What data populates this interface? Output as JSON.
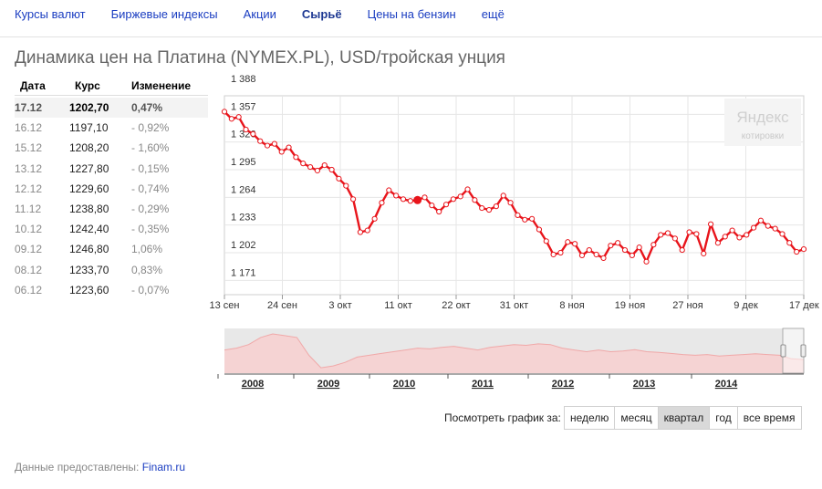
{
  "nav": {
    "items": [
      {
        "label": "Курсы валют",
        "active": false
      },
      {
        "label": "Биржевые индексы",
        "active": false
      },
      {
        "label": "Акции",
        "active": false
      },
      {
        "label": "Сырьё",
        "active": true
      },
      {
        "label": "Цены на бензин",
        "active": false
      },
      {
        "label": "ещё",
        "active": false
      }
    ]
  },
  "page_title": "Динамика цен на Платина (NYMEX.PL), USD/тройская унция",
  "table": {
    "headers": [
      "Дата",
      "Курс",
      "Изменение"
    ],
    "rows": [
      {
        "date": "17.12",
        "rate": "1202,70",
        "change": "0,47%"
      },
      {
        "date": "16.12",
        "rate": "1197,10",
        "change": "- 0,92%"
      },
      {
        "date": "15.12",
        "rate": "1208,20",
        "change": "- 1,60%"
      },
      {
        "date": "13.12",
        "rate": "1227,80",
        "change": "- 0,15%"
      },
      {
        "date": "12.12",
        "rate": "1229,60",
        "change": "- 0,74%"
      },
      {
        "date": "11.12",
        "rate": "1238,80",
        "change": "- 0,29%"
      },
      {
        "date": "10.12",
        "rate": "1242,40",
        "change": "- 0,35%"
      },
      {
        "date": "09.12",
        "rate": "1246,80",
        "change": "1,06%"
      },
      {
        "date": "08.12",
        "rate": "1233,70",
        "change": "0,83%"
      },
      {
        "date": "06.12",
        "rate": "1223,60",
        "change": "- 0,07%"
      }
    ]
  },
  "watermark": {
    "brand": "Яндекс",
    "sub": "котировки"
  },
  "colors": {
    "line": "#e8141b",
    "marker_fill": "#ffffff",
    "grid": "#e6e6e6",
    "overview_fill": "#f5d3d3",
    "overview_line": "#f0a8a8",
    "overview_bg": "#e8e8e8"
  },
  "chart_data": {
    "type": "line",
    "title": "Динамика цен на Платина (NYMEX.PL), USD/тройская унция",
    "ylim": [
      1155,
      1388
    ],
    "y_ticks": [
      1388,
      1357,
      1326,
      1295,
      1264,
      1233,
      1202,
      1171
    ],
    "y_tick_labels": [
      "1 388",
      "1 357",
      "1 326",
      "1 295",
      "1 264",
      "1 233",
      "1 202",
      "1 171"
    ],
    "x_tick_labels": [
      "13 сен",
      "24 сен",
      "3 окт",
      "11 окт",
      "22 окт",
      "31 окт",
      "8 ноя",
      "19 ноя",
      "27 ноя",
      "9 дек",
      "17 дек"
    ],
    "grid": true,
    "highlighted_point_index": 27,
    "series": [
      {
        "values": [
          1360,
          1352,
          1354,
          1340,
          1335,
          1327,
          1322,
          1324,
          1315,
          1320,
          1309,
          1302,
          1298,
          1294,
          1300,
          1295,
          1285,
          1277,
          1262,
          1225,
          1227,
          1240,
          1258,
          1272,
          1266,
          1262,
          1260,
          1261,
          1264,
          1255,
          1248,
          1256,
          1262,
          1265,
          1273,
          1261,
          1252,
          1250,
          1254,
          1266,
          1258,
          1244,
          1239,
          1240,
          1228,
          1215,
          1200,
          1202,
          1214,
          1212,
          1199,
          1205,
          1200,
          1196,
          1210,
          1213,
          1205,
          1199,
          1208,
          1192,
          1211,
          1222,
          1224,
          1218,
          1205,
          1225,
          1223,
          1201,
          1234,
          1213,
          1220,
          1227,
          1219,
          1222,
          1230,
          1238,
          1232,
          1229,
          1223,
          1213,
          1203,
          1206
        ]
      }
    ],
    "overview_years": [
      "2008",
      "2009",
      "2010",
      "2011",
      "2012",
      "2013",
      "2014"
    ]
  },
  "period": {
    "label": "Посмотреть график за:",
    "buttons": [
      {
        "label": "неделю",
        "active": false
      },
      {
        "label": "месяц",
        "active": false
      },
      {
        "label": "квартал",
        "active": true
      },
      {
        "label": "год",
        "active": false
      },
      {
        "label": "все время",
        "active": false
      }
    ]
  },
  "source": {
    "prefix": "Данные предоставлены:",
    "link": "Finam.ru"
  }
}
